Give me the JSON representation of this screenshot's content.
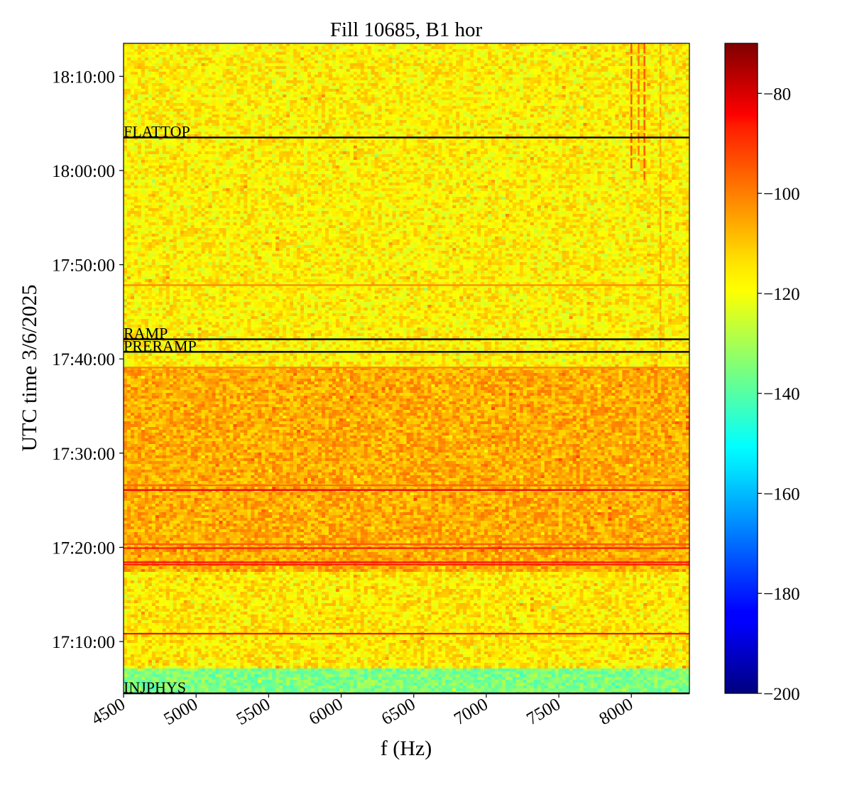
{
  "chart_data": {
    "type": "heatmap",
    "title": "Fill 10685, B1 hor",
    "xlabel": "f (Hz)",
    "ylabel": "UTC time 3/6/2025",
    "xlim": [
      4500,
      8400
    ],
    "ylim": [
      "17:04:30",
      "18:13:30"
    ],
    "x_ticks": [
      {
        "value": 4500,
        "label": "4500"
      },
      {
        "value": 5000,
        "label": "5000"
      },
      {
        "value": 5500,
        "label": "5500"
      },
      {
        "value": 6000,
        "label": "6000"
      },
      {
        "value": 6500,
        "label": "6500"
      },
      {
        "value": 7000,
        "label": "7000"
      },
      {
        "value": 7500,
        "label": "7500"
      },
      {
        "value": 8000,
        "label": "8000"
      }
    ],
    "y_ticks": [
      {
        "value": "17:10:00",
        "label": "17:10:00"
      },
      {
        "value": "17:20:00",
        "label": "17:20:00"
      },
      {
        "value": "17:30:00",
        "label": "17:30:00"
      },
      {
        "value": "17:40:00",
        "label": "17:40:00"
      },
      {
        "value": "17:50:00",
        "label": "17:50:00"
      },
      {
        "value": "18:00:00",
        "label": "18:00:00"
      },
      {
        "value": "18:10:00",
        "label": "18:10:00"
      }
    ],
    "phase_markers": [
      {
        "label": "INJPHYS",
        "time": "17:04:30"
      },
      {
        "label": "PRERAMP",
        "time": "17:40:45"
      },
      {
        "label": "RAMP",
        "time": "17:42:05"
      },
      {
        "label": "FLATTOP",
        "time": "18:03:30"
      }
    ],
    "segments": [
      {
        "from": "17:04:30",
        "to": "17:07:00",
        "level": -135
      },
      {
        "from": "17:07:00",
        "to": "17:17:30",
        "level": -116
      },
      {
        "from": "17:17:30",
        "to": "17:39:15",
        "level": -108
      },
      {
        "from": "17:39:15",
        "to": "18:13:30",
        "level": -117
      }
    ],
    "bright_rows": [
      {
        "time": "17:10:50",
        "level": -88
      },
      {
        "time": "17:18:10",
        "level": -90
      },
      {
        "time": "17:18:25",
        "level": -88
      },
      {
        "time": "17:19:55",
        "level": -88
      },
      {
        "time": "17:20:20",
        "level": -98
      },
      {
        "time": "17:26:05",
        "level": -85
      },
      {
        "time": "17:26:35",
        "level": -100
      },
      {
        "time": "17:39:05",
        "level": -103
      },
      {
        "time": "17:47:50",
        "level": -104
      }
    ],
    "vertical_lines": [
      {
        "f": 8000,
        "from": "18:00:00",
        "to": "18:13:30",
        "level": -98
      },
      {
        "f": 8050,
        "from": "18:01:00",
        "to": "18:13:30",
        "level": -102
      },
      {
        "f": 8090,
        "from": "17:59:00",
        "to": "18:13:30",
        "level": -98
      },
      {
        "f": 8200,
        "from": "17:40:00",
        "to": "18:13:30",
        "level": -108
      }
    ],
    "colorbar": {
      "colormap": "jet",
      "range": [
        -200,
        -70
      ],
      "ticks": [
        {
          "value": -80,
          "label": "−80"
        },
        {
          "value": -100,
          "label": "−100"
        },
        {
          "value": -120,
          "label": "−120"
        },
        {
          "value": -140,
          "label": "−140"
        },
        {
          "value": -160,
          "label": "−160"
        },
        {
          "value": -180,
          "label": "−180"
        },
        {
          "value": -200,
          "label": "−200"
        }
      ]
    }
  }
}
